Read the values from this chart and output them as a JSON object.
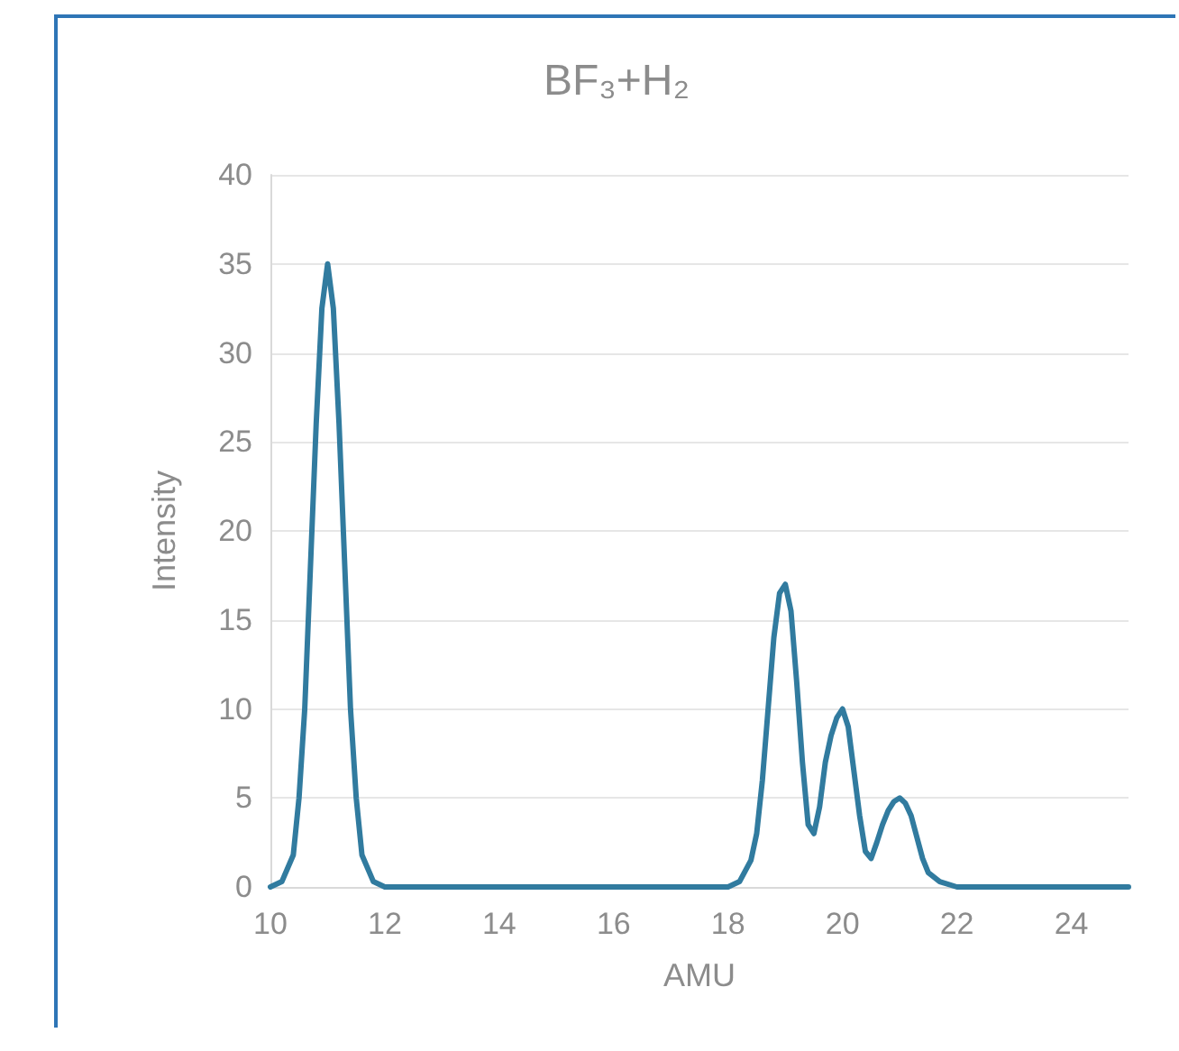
{
  "chart_data": {
    "type": "line",
    "title": "BF₃+H₂",
    "xlabel": "AMU",
    "ylabel": "Intensity",
    "x": [
      10,
      10.2,
      10.4,
      10.5,
      10.6,
      10.7,
      10.8,
      10.9,
      11,
      11.1,
      11.2,
      11.3,
      11.4,
      11.5,
      11.6,
      11.8,
      12,
      18,
      18.2,
      18.4,
      18.5,
      18.6,
      18.7,
      18.8,
      18.9,
      19,
      19.1,
      19.2,
      19.3,
      19.4,
      19.5,
      19.6,
      19.7,
      19.8,
      19.9,
      20,
      20.1,
      20.2,
      20.3,
      20.4,
      20.5,
      20.6,
      20.7,
      20.8,
      20.9,
      21,
      21.1,
      21.2,
      21.3,
      21.4,
      21.5,
      21.7,
      22,
      25
    ],
    "series": [
      {
        "color": "#317b9f",
        "values": [
          0,
          0.3,
          1.8,
          5,
          10,
          18,
          26,
          32.5,
          35,
          32.5,
          26,
          18,
          10,
          5,
          1.8,
          0.3,
          0,
          0,
          0.3,
          1.5,
          3,
          6,
          10,
          14,
          16.5,
          17,
          15.5,
          11.5,
          7,
          3.5,
          3,
          4.5,
          7,
          8.5,
          9.5,
          10,
          9,
          6.5,
          4,
          2,
          1.6,
          2.5,
          3.5,
          4.3,
          4.8,
          5,
          4.7,
          4,
          2.8,
          1.6,
          0.8,
          0.3,
          0,
          0
        ]
      }
    ],
    "xlim": [
      10,
      25
    ],
    "xticks": [
      10,
      12,
      14,
      16,
      18,
      20,
      22,
      24
    ],
    "ylim": [
      0,
      40
    ],
    "yticks": [
      0,
      5,
      10,
      15,
      20,
      25,
      30,
      35,
      40
    ],
    "grid": "y",
    "marker": "none",
    "line_style": "solid"
  }
}
